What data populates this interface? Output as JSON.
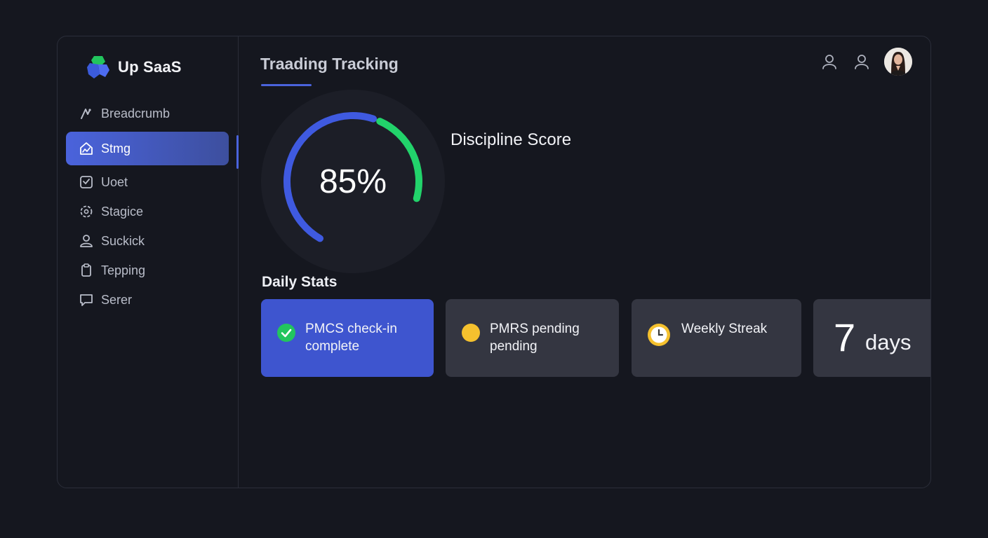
{
  "brand": {
    "name": "Up SaaS",
    "logo": "hexagon-logo",
    "colors": {
      "green": "#22c55e",
      "blue": "#3b5bdb"
    }
  },
  "sidebar": {
    "items": [
      {
        "label": "Breadcrumb",
        "icon": "breadcrumb-icon",
        "active": false
      },
      {
        "label": "Stmg",
        "icon": "home-chart-icon",
        "active": true
      },
      {
        "label": "Uoet",
        "icon": "checkbox-icon",
        "active": false
      },
      {
        "label": "Stagice",
        "icon": "gear-icon",
        "active": false
      },
      {
        "label": "Suckick",
        "icon": "user-icon",
        "active": false
      },
      {
        "label": "Tepping",
        "icon": "clipboard-icon",
        "active": false
      },
      {
        "label": "Serer",
        "icon": "chat-icon",
        "active": false
      }
    ]
  },
  "header": {
    "title": "Traading Tracking",
    "icons": [
      "user-icon",
      "user-icon",
      "avatar"
    ]
  },
  "gauge": {
    "value": 85,
    "display": "85%",
    "label": "Discipline Score",
    "colors": {
      "track": "#1c1e27",
      "blue": "#3f5ae0",
      "green": "#22d36b"
    }
  },
  "daily_stats": {
    "title": "Daily Stats",
    "cards": [
      {
        "text": "PMCS check-in complete",
        "icon": "check-circle-icon",
        "status_color": "#22c55e"
      },
      {
        "text": "PMRS pending pending",
        "icon": "pending-dot-icon",
        "status_color": "#f5c12e"
      },
      {
        "text": "Weekly Streak",
        "icon": "clock-icon",
        "status_color": "#f5c12e"
      },
      {
        "number": "7",
        "unit": "days"
      }
    ]
  },
  "colors": {
    "accent": "#4a63dc",
    "background": "#15171f",
    "card": "#343641",
    "card_active": "#3e55cf"
  }
}
